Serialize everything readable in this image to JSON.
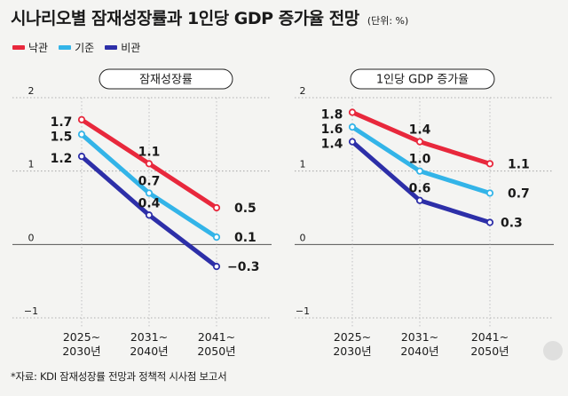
{
  "header": {
    "title": "시나리오별 잠재성장률과 1인당 GDP 증가율 전망",
    "unit": "(단위: %)"
  },
  "legend": [
    {
      "label": "낙관",
      "color": "#e8283c"
    },
    {
      "label": "기준",
      "color": "#33b4e8"
    },
    {
      "label": "비관",
      "color": "#2d2fa8"
    }
  ],
  "source": "*자료: KDI 잠재성장률 전망과 정책적 시사점 보고서",
  "chart_data": [
    {
      "type": "line",
      "title": "잠재성장률",
      "categories": [
        "2025~\n2030년",
        "2031~\n2040년",
        "2041~\n2050년"
      ],
      "ylim": [
        -1,
        2
      ],
      "yticks": [
        "2",
        "1",
        "0",
        "−1"
      ],
      "series": [
        {
          "name": "낙관",
          "color": "#e8283c",
          "values": [
            1.7,
            1.1,
            0.5
          ],
          "labels": [
            "1.7",
            "1.1",
            "0.5"
          ]
        },
        {
          "name": "기준",
          "color": "#33b4e8",
          "values": [
            1.5,
            0.7,
            0.1
          ],
          "labels": [
            "1.5",
            "0.7",
            "0.1"
          ]
        },
        {
          "name": "비관",
          "color": "#2d2fa8",
          "values": [
            1.2,
            0.4,
            -0.3
          ],
          "labels": [
            "1.2",
            "0.4",
            "−0.3"
          ]
        }
      ]
    },
    {
      "type": "line",
      "title": "1인당 GDP 증가율",
      "categories": [
        "2025~\n2030년",
        "2031~\n2040년",
        "2041~\n2050년"
      ],
      "ylim": [
        -1,
        2
      ],
      "yticks": [
        "2",
        "1",
        "0",
        "−1"
      ],
      "series": [
        {
          "name": "낙관",
          "color": "#e8283c",
          "values": [
            1.8,
            1.4,
            1.1
          ],
          "labels": [
            "1.8",
            "1.4",
            "1.1"
          ]
        },
        {
          "name": "기준",
          "color": "#33b4e8",
          "values": [
            1.6,
            1.0,
            0.7
          ],
          "labels": [
            "1.6",
            "1.0",
            "0.7"
          ]
        },
        {
          "name": "비관",
          "color": "#2d2fa8",
          "values": [
            1.4,
            0.6,
            0.3
          ],
          "labels": [
            "1.4",
            "0.6",
            "0.3"
          ]
        }
      ]
    }
  ]
}
